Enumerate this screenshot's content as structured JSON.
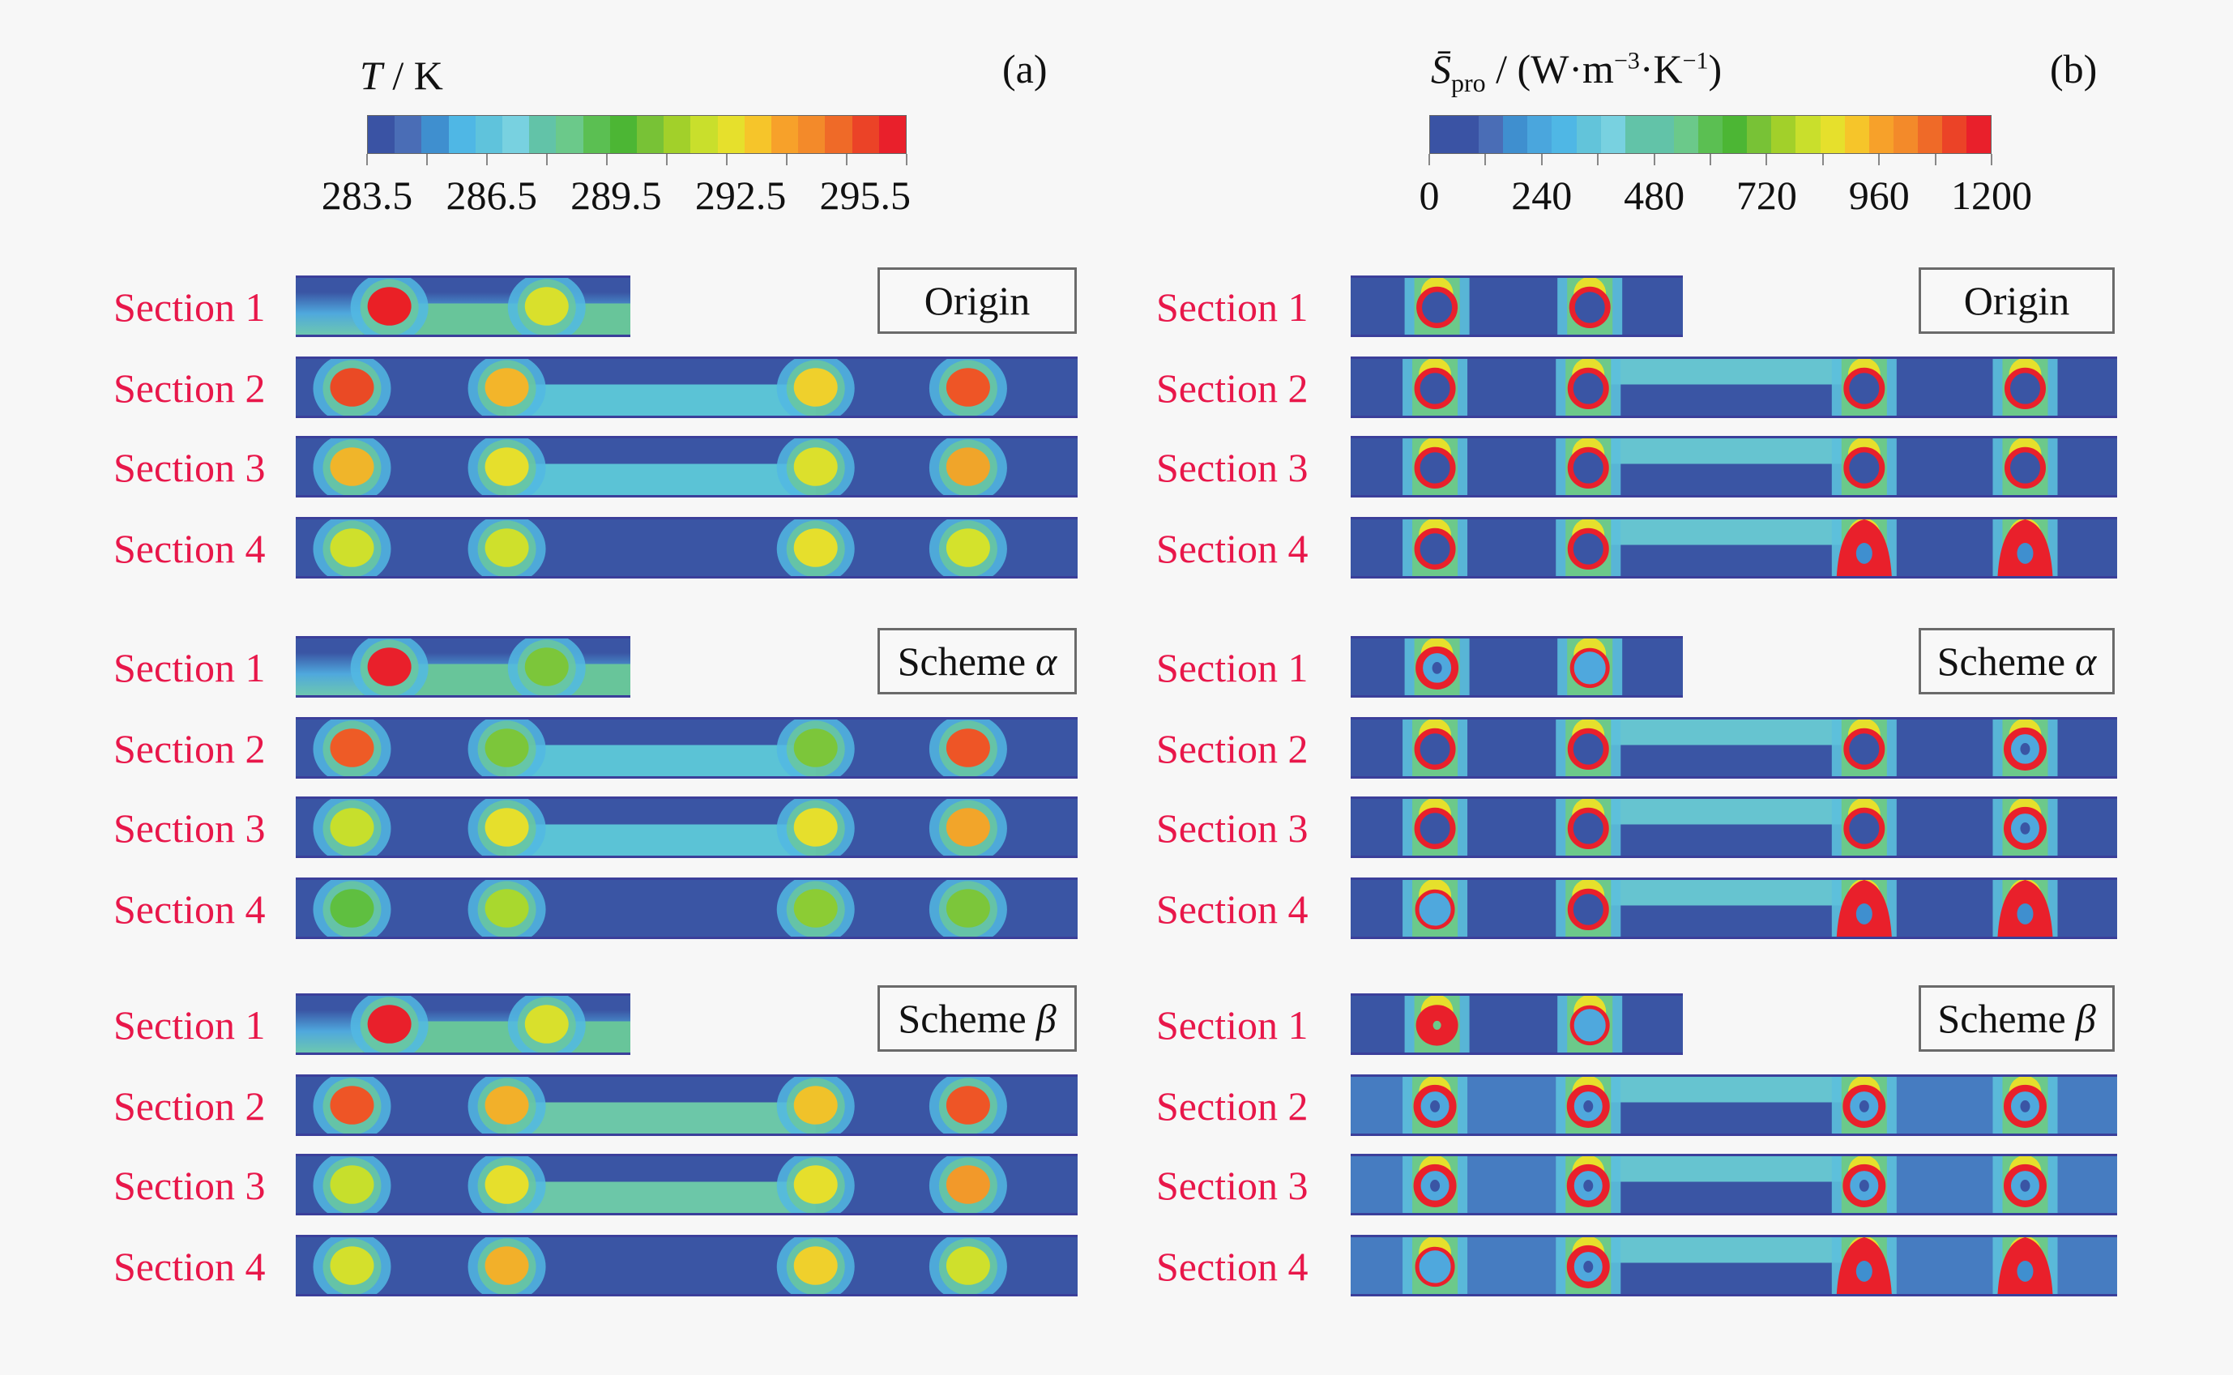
{
  "figure": {
    "panels": [
      {
        "tag": "(a)",
        "colorbar": {
          "title_var": "T",
          "title_unit": " / K",
          "ticks": [
            "283.5",
            "286.5",
            "289.5",
            "292.5",
            "295.5"
          ],
          "min": 283.5,
          "max": 296.5,
          "colors": [
            "#3a53a4",
            "#4a6db6",
            "#3f8fcf",
            "#4fb7e5",
            "#5fc3dc",
            "#78d1e0",
            "#62c3a8",
            "#6bc98a",
            "#5bbf52",
            "#4cb634",
            "#78c236",
            "#a2d02a",
            "#c9df2c",
            "#e6e02c",
            "#f6c52a",
            "#f7a12a",
            "#f38a2a",
            "#ef6a28",
            "#eb4327",
            "#e9202b"
          ]
        },
        "schemes": [
          {
            "name": "Origin",
            "name_italic": "",
            "sections": [
              {
                "label": "Section 1",
                "short": true,
                "bg": "green-lower",
                "spots": [
                  "#ea2026",
                  "#d9e02c"
                ]
              },
              {
                "label": "Section 2",
                "short": false,
                "bg": "bridge",
                "spots": [
                  "#ea4a25",
                  "#f3b52a",
                  "#efd02c",
                  "#ee5526"
                ]
              },
              {
                "label": "Section 3",
                "short": false,
                "bg": "bridge",
                "spots": [
                  "#f0b52a",
                  "#e6df2c",
                  "#dce02c",
                  "#f0a52a"
                ]
              },
              {
                "label": "Section 4",
                "short": false,
                "bg": "plain",
                "spots": [
                  "#cfe02c",
                  "#cfe02c",
                  "#e6df2c",
                  "#d4e22c"
                ]
              }
            ]
          },
          {
            "name": "Scheme",
            "name_italic": "α",
            "sections": [
              {
                "label": "Section 1",
                "short": true,
                "bg": "green-lower",
                "spots": [
                  "#e9202b",
                  "#7cc63a"
                ]
              },
              {
                "label": "Section 2",
                "short": false,
                "bg": "bridge",
                "spots": [
                  "#ee5b26",
                  "#7cc63a",
                  "#7cc63a",
                  "#ee5526"
                ]
              },
              {
                "label": "Section 3",
                "short": false,
                "bg": "bridge",
                "spots": [
                  "#c7df2c",
                  "#e6df2c",
                  "#e6df2c",
                  "#f2a52a"
                ]
              },
              {
                "label": "Section 4",
                "short": false,
                "bg": "plain",
                "spots": [
                  "#5fbf40",
                  "#a9d82e",
                  "#8ccc34",
                  "#7cc63a"
                ]
              }
            ]
          },
          {
            "name": "Scheme",
            "name_italic": "β",
            "sections": [
              {
                "label": "Section 1",
                "short": true,
                "bg": "green-lower",
                "spots": [
                  "#e9202b",
                  "#d9e02c"
                ]
              },
              {
                "label": "Section 2",
                "short": false,
                "bg": "bridge-green",
                "spots": [
                  "#ee5526",
                  "#f2b02a",
                  "#f0c22a",
                  "#ee5526"
                ]
              },
              {
                "label": "Section 3",
                "short": false,
                "bg": "bridge-green",
                "spots": [
                  "#c7df2c",
                  "#e6df2c",
                  "#e6df2c",
                  "#f2992a"
                ]
              },
              {
                "label": "Section 4",
                "short": false,
                "bg": "plain",
                "spots": [
                  "#d4e02c",
                  "#f2b02a",
                  "#efd02c",
                  "#cfe02c"
                ]
              }
            ]
          }
        ]
      },
      {
        "tag": "(b)",
        "colorbar": {
          "title_var": "S̄",
          "title_sub": "pro",
          "title_unit": " / (W·m",
          "title_sup1": "−3",
          "title_mid": "·K",
          "title_sup2": "−1",
          "title_end": ")",
          "ticks": [
            "0",
            "240",
            "480",
            "720",
            "960",
            "1200"
          ],
          "min": 0,
          "max": 1200,
          "colors": [
            "#3a53a4",
            "#3a53a4",
            "#4a6db6",
            "#3f8fcf",
            "#4aa6dd",
            "#4fb7e5",
            "#62c4da",
            "#78d1e0",
            "#62c3a8",
            "#62c3a8",
            "#6bc98a",
            "#5bbf52",
            "#4cb634",
            "#78c236",
            "#a2d02a",
            "#c9df2c",
            "#e6e02c",
            "#f6c52a",
            "#f7a12a",
            "#f38a2a",
            "#ef6a28",
            "#eb4327",
            "#e9202b"
          ]
        },
        "schemes": [
          {
            "name": "Origin",
            "name_italic": "",
            "sections": [
              {
                "label": "Section 1",
                "short": true,
                "bg": "plain",
                "spots": [
                  "ring",
                  "ring"
                ]
              },
              {
                "label": "Section 2",
                "short": false,
                "bg": "bridge-cyan",
                "spots": [
                  "ring",
                  "ring",
                  "ring",
                  "ring"
                ]
              },
              {
                "label": "Section 3",
                "short": false,
                "bg": "bridge-cyan",
                "spots": [
                  "ring",
                  "ring",
                  "ring",
                  "ring"
                ]
              },
              {
                "label": "Section 4",
                "short": false,
                "bg": "bridge-cyan",
                "spots": [
                  "ring",
                  "ring",
                  "blob",
                  "blob"
                ]
              }
            ]
          },
          {
            "name": "Scheme",
            "name_italic": "α",
            "sections": [
              {
                "label": "Section 1",
                "short": true,
                "bg": "plain",
                "spots": [
                  "thick",
                  "thin"
                ]
              },
              {
                "label": "Section 2",
                "short": false,
                "bg": "bridge-cyan",
                "spots": [
                  "ring",
                  "ring",
                  "ring",
                  "thick"
                ]
              },
              {
                "label": "Section 3",
                "short": false,
                "bg": "bridge-cyan",
                "spots": [
                  "ring",
                  "ring",
                  "ring",
                  "thick"
                ]
              },
              {
                "label": "Section 4",
                "short": false,
                "bg": "bridge-cyan",
                "spots": [
                  "thin",
                  "ring",
                  "blob",
                  "blob"
                ]
              }
            ]
          },
          {
            "name": "Scheme",
            "name_italic": "β",
            "sections": [
              {
                "label": "Section 1",
                "short": true,
                "bg": "plain",
                "spots": [
                  "solid",
                  "thin"
                ]
              },
              {
                "label": "Section 2",
                "short": false,
                "bg": "noisy",
                "spots": [
                  "thick",
                  "thick",
                  "thick",
                  "thick"
                ]
              },
              {
                "label": "Section 3",
                "short": false,
                "bg": "noisy",
                "spots": [
                  "thick",
                  "thick",
                  "thick",
                  "thick"
                ]
              },
              {
                "label": "Section 4",
                "short": false,
                "bg": "noisy",
                "spots": [
                  "thin",
                  "thick",
                  "blob",
                  "blob"
                ]
              }
            ]
          }
        ]
      }
    ]
  }
}
